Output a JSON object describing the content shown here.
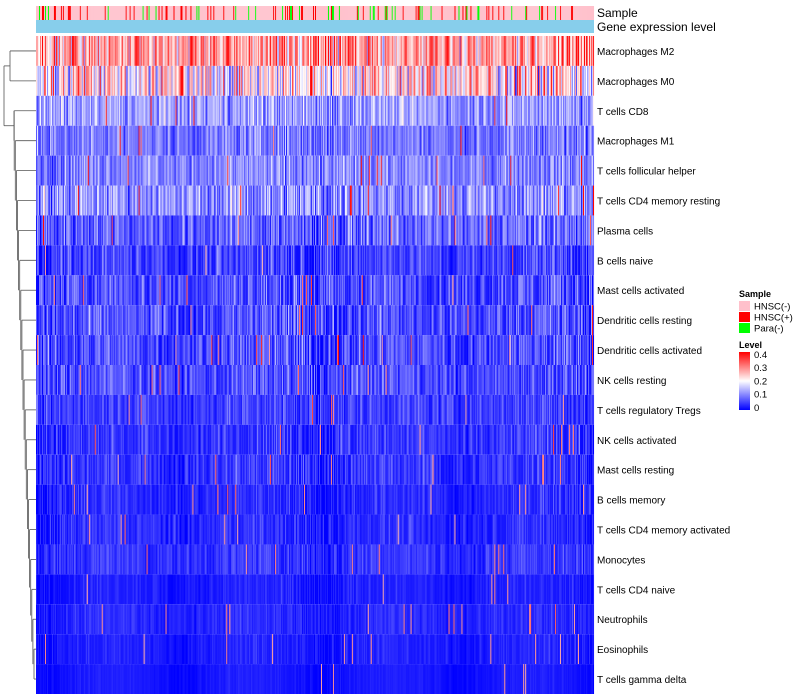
{
  "chart_data": {
    "type": "heatmap",
    "title": "",
    "annotation_tracks": [
      "Sample",
      "Gene expression level"
    ],
    "rows": [
      {
        "label": "Macrophages M2",
        "mean": 0.28,
        "spread": 0.1
      },
      {
        "label": "Macrophages M0",
        "mean": 0.22,
        "spread": 0.12
      },
      {
        "label": "T cells CD8",
        "mean": 0.12,
        "spread": 0.06
      },
      {
        "label": "Macrophages M1",
        "mean": 0.09,
        "spread": 0.05
      },
      {
        "label": "T cells follicular helper",
        "mean": 0.1,
        "spread": 0.05
      },
      {
        "label": "T cells CD4 memory resting",
        "mean": 0.11,
        "spread": 0.07
      },
      {
        "label": "Plasma cells",
        "mean": 0.07,
        "spread": 0.06
      },
      {
        "label": "B cells naive",
        "mean": 0.04,
        "spread": 0.05
      },
      {
        "label": "Mast cells activated",
        "mean": 0.05,
        "spread": 0.06
      },
      {
        "label": "Dendritic cells resting",
        "mean": 0.05,
        "spread": 0.06
      },
      {
        "label": "Dendritic cells activated",
        "mean": 0.05,
        "spread": 0.06
      },
      {
        "label": "NK cells resting",
        "mean": 0.05,
        "spread": 0.05
      },
      {
        "label": "T cells regulatory  Tregs",
        "mean": 0.04,
        "spread": 0.04
      },
      {
        "label": "NK cells activated",
        "mean": 0.03,
        "spread": 0.04
      },
      {
        "label": "Mast cells resting",
        "mean": 0.03,
        "spread": 0.04
      },
      {
        "label": "B cells memory",
        "mean": 0.02,
        "spread": 0.03
      },
      {
        "label": "T cells CD4 memory activated",
        "mean": 0.02,
        "spread": 0.03
      },
      {
        "label": "Monocytes",
        "mean": 0.03,
        "spread": 0.03
      },
      {
        "label": "T cells CD4 naive",
        "mean": 0.01,
        "spread": 0.02
      },
      {
        "label": "Neutrophils",
        "mean": 0.02,
        "spread": 0.02
      },
      {
        "label": "Eosinophils",
        "mean": 0.01,
        "spread": 0.02
      },
      {
        "label": "T cells gamma delta",
        "mean": 0.005,
        "spread": 0.01
      }
    ],
    "columns": 560,
    "sample_groups": [
      {
        "label": "HNSC(-)",
        "color": "#FFC0CB",
        "share": 0.8
      },
      {
        "label": "HNSC(+)",
        "color": "#FF0000",
        "share": 0.13
      },
      {
        "label": "Para(-)",
        "color": "#00FF00",
        "share": 0.07
      }
    ],
    "gene_expression_color": "#87CEEB",
    "color_scale": {
      "min": 0,
      "max": 0.4,
      "stops": [
        "#0000FF",
        "#FFFFFF",
        "#FF0000"
      ],
      "ticks": [
        "0.4",
        "0.3",
        "0.2",
        "0.1",
        "0"
      ]
    },
    "legend": {
      "sample_title": "Sample",
      "level_title": "Level",
      "position": "right"
    }
  }
}
